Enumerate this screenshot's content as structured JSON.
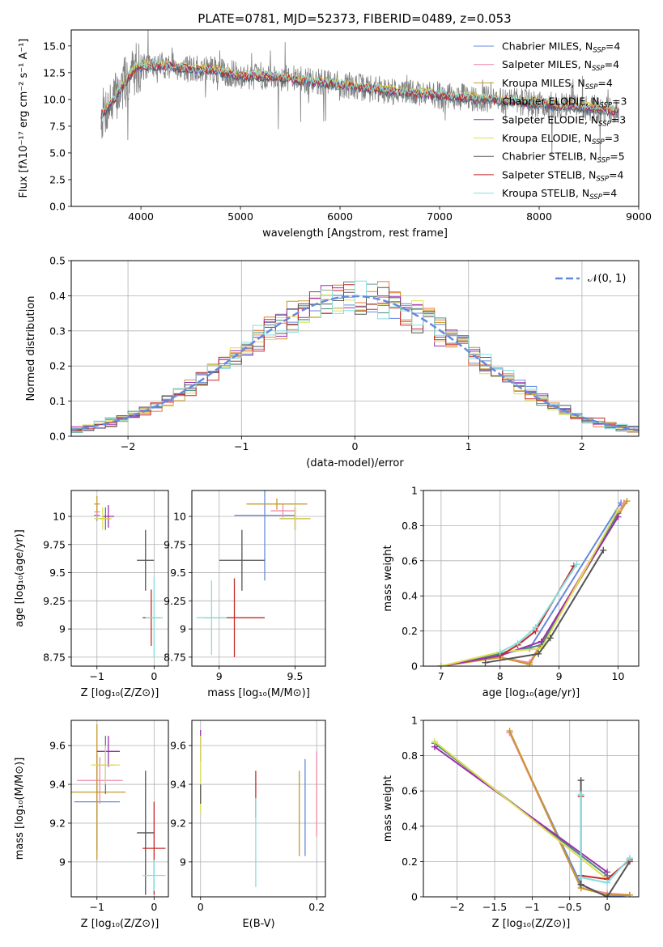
{
  "figure_title": "PLATE=0781, MJD=52373, FIBERID=0489, z=0.053",
  "models": [
    {
      "name": "Chabrier MILES",
      "n_ssp": "4",
      "color": "#6688dd"
    },
    {
      "name": "Salpeter MILES",
      "n_ssp": "4",
      "color": "#f08aa8"
    },
    {
      "name": "Kroupa MILES",
      "n_ssp": "4",
      "color": "#c8982a"
    },
    {
      "name": "Chabrier ELODIE",
      "n_ssp": "3",
      "color": "#4a8a7a"
    },
    {
      "name": "Salpeter ELODIE",
      "n_ssp": "3",
      "color": "#9b2fb0"
    },
    {
      "name": "Kroupa ELODIE",
      "n_ssp": "3",
      "color": "#dede55"
    },
    {
      "name": "Chabrier STELIB",
      "n_ssp": "5",
      "color": "#555555"
    },
    {
      "name": "Salpeter STELIB",
      "n_ssp": "4",
      "color": "#c62828"
    },
    {
      "name": "Kroupa STELIB",
      "n_ssp": "4",
      "color": "#86dede"
    }
  ],
  "chart_data": [
    {
      "id": "spectrum",
      "type": "line",
      "xlabel": "wavelength [Angstrom, rest frame]",
      "ylabel": "Flux [fλ10⁻¹⁷ erg cm⁻² s⁻¹ A⁻¹]",
      "xlim": [
        3300,
        9000
      ],
      "ylim": [
        0,
        16.5
      ],
      "xticks": [
        "4000",
        "5000",
        "6000",
        "7000",
        "8000",
        "9000"
      ],
      "yticks": [
        "0.0",
        "2.5",
        "5.0",
        "7.5",
        "10.0",
        "12.5",
        "15.0"
      ],
      "data_color": "#808080",
      "continuum": [
        [
          3600,
          8.5
        ],
        [
          3700,
          9.6
        ],
        [
          3800,
          11.0
        ],
        [
          3950,
          13.0
        ],
        [
          4100,
          13.2
        ],
        [
          4300,
          13.2
        ],
        [
          4500,
          12.8
        ],
        [
          4700,
          12.8
        ],
        [
          5000,
          12.2
        ],
        [
          5300,
          12.2
        ],
        [
          5600,
          11.8
        ],
        [
          6000,
          11.4
        ],
        [
          6500,
          10.8
        ],
        [
          7000,
          10.4
        ],
        [
          7500,
          10.0
        ],
        [
          8000,
          9.6
        ],
        [
          8500,
          9.2
        ],
        [
          8800,
          8.9
        ]
      ],
      "legend_loc": "upper right"
    },
    {
      "id": "residuals",
      "type": "histogram",
      "xlabel": "(data-model)/error",
      "ylabel": "Normed distribution",
      "xlim": [
        -2.5,
        2.5
      ],
      "ylim": [
        0,
        0.5
      ],
      "xticks": [
        "−2",
        "−1",
        "0",
        "1",
        "2"
      ],
      "yticks": [
        "0.0",
        "0.1",
        "0.2",
        "0.3",
        "0.4",
        "0.5"
      ],
      "bin_width": 0.1,
      "gaussian_label": "𝒩(0, 1)",
      "gaussian_color": "#6688dd",
      "grid": true
    },
    {
      "id": "age_vs_z",
      "type": "scatter",
      "xlabel": "Z [log₁₀(Z/Z⊙)]",
      "ylabel": "age  [log₁₀(age/yr)]",
      "xlim": [
        -1.45,
        0.25
      ],
      "ylim": [
        8.67,
        10.23
      ],
      "xticks": [
        -1,
        0
      ],
      "yticks": [
        8.75,
        9.0,
        9.25,
        9.5,
        9.75,
        10.0
      ],
      "points": [
        {
          "x": -1.0,
          "y": 10.01,
          "xerr": 0.05,
          "yerr": 0.05,
          "c": 0
        },
        {
          "x": -1.0,
          "y": 10.04,
          "xerr": 0.05,
          "yerr": 0.06,
          "c": 1
        },
        {
          "x": -1.0,
          "y": 10.11,
          "xerr": 0.05,
          "yerr": 0.07,
          "c": 2
        },
        {
          "x": -0.85,
          "y": 9.98,
          "xerr": 0.1,
          "yerr": 0.1,
          "c": 3
        },
        {
          "x": -0.8,
          "y": 10.0,
          "xerr": 0.1,
          "yerr": 0.1,
          "c": 4
        },
        {
          "x": -0.9,
          "y": 9.98,
          "xerr": 0.15,
          "yerr": 0.1,
          "c": 5
        },
        {
          "x": -0.15,
          "y": 9.61,
          "xerr": 0.15,
          "yerr": 0.27,
          "c": 6
        },
        {
          "x": -0.05,
          "y": 9.1,
          "xerr": 0.15,
          "yerr": 0.25,
          "c": 7
        },
        {
          "x": 0.0,
          "y": 9.1,
          "xerr": 0.15,
          "yerr": 0.36,
          "c": 8
        }
      ]
    },
    {
      "id": "age_vs_mass",
      "type": "scatter",
      "xlabel": "mass [log₁₀(M/M⊙)]",
      "ylabel": "",
      "xlim": [
        8.82,
        9.7
      ],
      "ylim": [
        8.67,
        10.23
      ],
      "xticks": [
        9.0,
        9.5
      ],
      "yticks": [
        8.75,
        9.0,
        9.25,
        9.5,
        9.75,
        10.0
      ],
      "points": [
        {
          "x": 9.3,
          "y": 10.01,
          "xerr": 0.2,
          "yerr": 0.58,
          "c": 0
        },
        {
          "x": 9.42,
          "y": 10.05,
          "xerr": 0.08,
          "yerr": 0.06,
          "c": 1
        },
        {
          "x": 9.38,
          "y": 10.11,
          "xerr": 0.2,
          "yerr": 0.05,
          "c": 2
        },
        {
          "x": 9.5,
          "y": 9.98,
          "xerr": 0.1,
          "yerr": 0.1,
          "c": 3
        },
        {
          "x": 9.5,
          "y": 9.98,
          "xerr": 0.1,
          "yerr": 0.1,
          "c": 4
        },
        {
          "x": 9.5,
          "y": 9.98,
          "xerr": 0.1,
          "yerr": 0.1,
          "c": 5
        },
        {
          "x": 9.15,
          "y": 9.61,
          "xerr": 0.15,
          "yerr": 0.27,
          "c": 6
        },
        {
          "x": 9.1,
          "y": 9.1,
          "xerr": 0.2,
          "yerr": 0.35,
          "c": 7
        },
        {
          "x": 8.95,
          "y": 9.1,
          "xerr": 0.1,
          "yerr": 0.33,
          "c": 8
        }
      ]
    },
    {
      "id": "weight_vs_age",
      "type": "line",
      "xlabel": "age  [log₁₀(age/yr)]",
      "ylabel": "mass weight",
      "xlim": [
        6.7,
        10.35
      ],
      "ylim": [
        0,
        1.0
      ],
      "xticks": [
        7,
        8,
        9,
        10
      ],
      "yticks": [
        0.0,
        0.2,
        0.4,
        0.6,
        0.8,
        1.0
      ],
      "series": [
        {
          "c": 0,
          "x": [
            7.0,
            8.0,
            8.5,
            10.05
          ],
          "y": [
            0.0,
            0.07,
            0.1,
            0.93
          ]
        },
        {
          "c": 1,
          "x": [
            7.0,
            8.0,
            8.5,
            10.1
          ],
          "y": [
            0.0,
            0.05,
            0.02,
            0.93
          ]
        },
        {
          "c": 2,
          "x": [
            7.0,
            8.0,
            8.5,
            10.15
          ],
          "y": [
            0.0,
            0.05,
            0.01,
            0.94
          ]
        },
        {
          "c": 3,
          "x": [
            7.0,
            8.0,
            8.7,
            10.0
          ],
          "y": [
            0.0,
            0.07,
            0.12,
            0.87
          ]
        },
        {
          "c": 4,
          "x": [
            7.0,
            8.0,
            8.7,
            10.0
          ],
          "y": [
            0.0,
            0.06,
            0.14,
            0.85
          ]
        },
        {
          "c": 5,
          "x": [
            7.0,
            8.0,
            8.7,
            10.0
          ],
          "y": [
            0.0,
            0.08,
            0.1,
            0.89
          ]
        },
        {
          "c": 6,
          "x": [
            7.75,
            8.65,
            8.85,
            9.75
          ],
          "y": [
            0.02,
            0.07,
            0.16,
            0.66
          ]
        },
        {
          "c": 7,
          "x": [
            8.0,
            8.3,
            8.6,
            9.25
          ],
          "y": [
            0.06,
            0.12,
            0.2,
            0.57
          ]
        },
        {
          "c": 8,
          "x": [
            8.0,
            8.3,
            8.6,
            9.3
          ],
          "y": [
            0.08,
            0.13,
            0.22,
            0.58
          ]
        }
      ]
    },
    {
      "id": "mass_vs_z",
      "type": "scatter",
      "xlabel": "Z [log₁₀(Z/Z⊙)]",
      "ylabel": "mass [log₁₀(M/M⊙)]",
      "xlim": [
        -1.45,
        0.25
      ],
      "ylim": [
        8.82,
        9.73
      ],
      "xticks": [
        -1,
        0
      ],
      "yticks": [
        9.0,
        9.2,
        9.4,
        9.6
      ],
      "points": [
        {
          "x": -1.0,
          "y": 9.31,
          "xerr": 0.4,
          "yerr": 0.25,
          "c": 0
        },
        {
          "x": -0.95,
          "y": 9.42,
          "xerr": 0.4,
          "yerr": 0.12,
          "c": 1
        },
        {
          "x": -1.0,
          "y": 9.36,
          "xerr": 0.5,
          "yerr": 0.35,
          "c": 2
        },
        {
          "x": -0.85,
          "y": 9.5,
          "xerr": 0.15,
          "yerr": 0.15,
          "c": 3
        },
        {
          "x": -0.8,
          "y": 9.57,
          "xerr": 0.2,
          "yerr": 0.08,
          "c": 4
        },
        {
          "x": -0.85,
          "y": 9.5,
          "xerr": 0.25,
          "yerr": 0.1,
          "c": 5
        },
        {
          "x": -0.15,
          "y": 9.15,
          "xerr": 0.15,
          "yerr": 0.32,
          "c": 6
        },
        {
          "x": 0.0,
          "y": 9.07,
          "xerr": 0.2,
          "yerr": 0.24,
          "c": 7
        },
        {
          "x": 0.0,
          "y": 8.93,
          "xerr": 0.2,
          "yerr": 0.08,
          "c": 8
        }
      ]
    },
    {
      "id": "mass_vs_ebv",
      "type": "scatter",
      "xlabel": "E(B-V)",
      "ylabel": "",
      "xlim": [
        -0.015,
        0.215
      ],
      "ylim": [
        8.82,
        9.73
      ],
      "xticks": [
        0.0,
        0.2
      ],
      "yticks": [
        9.0,
        9.2,
        9.4,
        9.6
      ],
      "points": [
        {
          "x": 0.0,
          "y": 9.6,
          "xerr": 0,
          "yerr": 0.08,
          "c": 4
        },
        {
          "x": 0.0,
          "y": 9.45,
          "xerr": 0,
          "yerr": 0.2,
          "c": 5
        },
        {
          "x": 0.0,
          "y": 9.35,
          "xerr": 0,
          "yerr": 0.05,
          "c": 6
        },
        {
          "x": 0.095,
          "y": 9.35,
          "xerr": 0,
          "yerr": 0.12,
          "c": 7
        },
        {
          "x": 0.095,
          "y": 9.1,
          "xerr": 0,
          "yerr": 0.23,
          "c": 8
        },
        {
          "x": 0.17,
          "y": 9.25,
          "xerr": 0,
          "yerr": 0.22,
          "c": 2
        },
        {
          "x": 0.18,
          "y": 9.28,
          "xerr": 0,
          "yerr": 0.25,
          "c": 0
        },
        {
          "x": 0.2,
          "y": 9.35,
          "xerr": 0,
          "yerr": 0.22,
          "c": 1
        }
      ]
    },
    {
      "id": "weight_vs_z",
      "type": "line",
      "xlabel": "Z [log₁₀(Z/Z⊙)]",
      "ylabel": "mass weight",
      "xlim": [
        -2.45,
        0.42
      ],
      "ylim": [
        0,
        1.0
      ],
      "xticks": [
        -2.0,
        -1.5,
        -1.0,
        -0.5,
        0.0
      ],
      "yticks": [
        0.0,
        0.2,
        0.4,
        0.6,
        0.8,
        1.0
      ],
      "series": [
        {
          "c": 0,
          "x": [
            -1.3,
            -0.35,
            0.0,
            0.3
          ],
          "y": [
            0.93,
            0.07,
            0.0,
            0.01
          ]
        },
        {
          "c": 1,
          "x": [
            -1.3,
            -0.35,
            0.0,
            0.3
          ],
          "y": [
            0.93,
            0.05,
            0.02,
            0.01
          ]
        },
        {
          "c": 2,
          "x": [
            -1.3,
            -0.35,
            0.0,
            0.3
          ],
          "y": [
            0.94,
            0.05,
            0.01,
            0.01
          ]
        },
        {
          "c": 3,
          "x": [
            -2.3,
            0.0
          ],
          "y": [
            0.87,
            0.12
          ]
        },
        {
          "c": 4,
          "x": [
            -2.3,
            0.0
          ],
          "y": [
            0.85,
            0.14
          ]
        },
        {
          "c": 5,
          "x": [
            -2.3,
            0.0
          ],
          "y": [
            0.88,
            0.1
          ]
        },
        {
          "c": 6,
          "x": [
            -0.35,
            -0.35,
            0.0,
            0.3
          ],
          "y": [
            0.66,
            0.07,
            0.0,
            0.2
          ]
        },
        {
          "c": 7,
          "x": [
            -0.35,
            -0.35,
            0.0,
            0.3
          ],
          "y": [
            0.57,
            0.12,
            0.1,
            0.21
          ]
        },
        {
          "c": 8,
          "x": [
            -0.35,
            -0.35,
            0.0,
            0.3
          ],
          "y": [
            0.58,
            0.11,
            0.08,
            0.22
          ]
        }
      ]
    }
  ]
}
